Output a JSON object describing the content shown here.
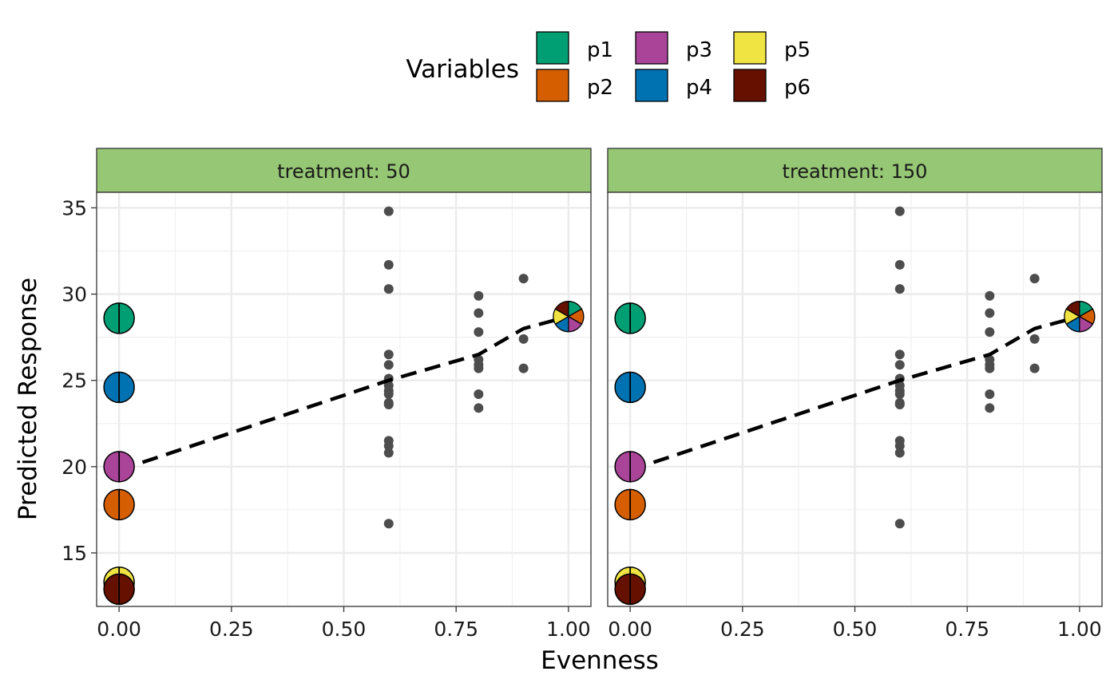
{
  "chart_data": {
    "type": "scatter",
    "xlabel": "Evenness",
    "ylabel": "Predicted Response",
    "xlim": [
      -0.05,
      1.05
    ],
    "ylim": [
      11.9,
      35.9
    ],
    "x_ticks": [
      0.0,
      0.25,
      0.5,
      0.75,
      1.0
    ],
    "x_tick_labels": [
      "0.00",
      "0.25",
      "0.50",
      "0.75",
      "1.00"
    ],
    "y_ticks": [
      15,
      20,
      25,
      30,
      35
    ],
    "y_tick_labels": [
      "15",
      "20",
      "25",
      "30",
      "35"
    ],
    "grid": true,
    "legend": {
      "title": "Variables",
      "position": "top",
      "entries": [
        {
          "name": "p1",
          "color": "#009E73"
        },
        {
          "name": "p2",
          "color": "#D55E00"
        },
        {
          "name": "p3",
          "color": "#AA4499"
        },
        {
          "name": "p4",
          "color": "#0072B2"
        },
        {
          "name": "p5",
          "color": "#F0E442"
        },
        {
          "name": "p6",
          "color": "#661100"
        }
      ]
    },
    "strip_color": "#96C774",
    "point_color": "#4d4d4d",
    "panels": [
      {
        "strip": "treatment: 50",
        "points": [
          [
            0.6,
            34.8
          ],
          [
            0.6,
            31.7
          ],
          [
            0.6,
            30.3
          ],
          [
            0.6,
            26.5
          ],
          [
            0.6,
            25.9
          ],
          [
            0.6,
            25.1
          ],
          [
            0.6,
            24.7
          ],
          [
            0.6,
            24.4
          ],
          [
            0.6,
            24.2
          ],
          [
            0.6,
            23.7
          ],
          [
            0.6,
            23.6
          ],
          [
            0.6,
            21.5
          ],
          [
            0.6,
            21.2
          ],
          [
            0.6,
            20.8
          ],
          [
            0.6,
            16.7
          ],
          [
            0.8,
            29.9
          ],
          [
            0.8,
            28.9
          ],
          [
            0.8,
            27.8
          ],
          [
            0.8,
            26.2
          ],
          [
            0.8,
            25.9
          ],
          [
            0.8,
            25.7
          ],
          [
            0.8,
            24.2
          ],
          [
            0.8,
            23.4
          ],
          [
            0.9,
            30.9
          ],
          [
            0.9,
            27.4
          ],
          [
            0.9,
            25.7
          ]
        ],
        "trend_line": [
          [
            0.0,
            19.8
          ],
          [
            0.6,
            25.0
          ],
          [
            0.8,
            26.5
          ],
          [
            0.9,
            28.0
          ],
          [
            1.0,
            28.7
          ]
        ],
        "monocultures": [
          {
            "variable": "p1",
            "x": 0.0,
            "y": 28.6
          },
          {
            "variable": "p4",
            "x": 0.0,
            "y": 24.6
          },
          {
            "variable": "p3",
            "x": 0.0,
            "y": 20.0
          },
          {
            "variable": "p2",
            "x": 0.0,
            "y": 17.8
          },
          {
            "variable": "p5",
            "x": 0.0,
            "y": 13.3
          },
          {
            "variable": "p6",
            "x": 0.0,
            "y": 12.9
          }
        ],
        "mixture": {
          "x": 1.0,
          "y": 28.7
        }
      },
      {
        "strip": "treatment: 150",
        "points": [
          [
            0.6,
            34.8
          ],
          [
            0.6,
            31.7
          ],
          [
            0.6,
            30.3
          ],
          [
            0.6,
            26.5
          ],
          [
            0.6,
            25.9
          ],
          [
            0.6,
            25.1
          ],
          [
            0.6,
            24.7
          ],
          [
            0.6,
            24.4
          ],
          [
            0.6,
            24.2
          ],
          [
            0.6,
            23.7
          ],
          [
            0.6,
            23.6
          ],
          [
            0.6,
            21.5
          ],
          [
            0.6,
            21.2
          ],
          [
            0.6,
            20.8
          ],
          [
            0.6,
            16.7
          ],
          [
            0.8,
            29.9
          ],
          [
            0.8,
            28.9
          ],
          [
            0.8,
            27.8
          ],
          [
            0.8,
            26.2
          ],
          [
            0.8,
            25.9
          ],
          [
            0.8,
            25.7
          ],
          [
            0.8,
            24.2
          ],
          [
            0.8,
            23.4
          ],
          [
            0.9,
            30.9
          ],
          [
            0.9,
            27.4
          ],
          [
            0.9,
            25.7
          ]
        ],
        "trend_line": [
          [
            0.0,
            19.8
          ],
          [
            0.6,
            25.0
          ],
          [
            0.8,
            26.5
          ],
          [
            0.9,
            28.0
          ],
          [
            1.0,
            28.7
          ]
        ],
        "monocultures": [
          {
            "variable": "p1",
            "x": 0.0,
            "y": 28.6
          },
          {
            "variable": "p4",
            "x": 0.0,
            "y": 24.6
          },
          {
            "variable": "p3",
            "x": 0.0,
            "y": 20.0
          },
          {
            "variable": "p2",
            "x": 0.0,
            "y": 17.8
          },
          {
            "variable": "p5",
            "x": 0.0,
            "y": 13.3
          },
          {
            "variable": "p6",
            "x": 0.0,
            "y": 12.9
          }
        ],
        "mixture": {
          "x": 1.0,
          "y": 28.7
        }
      }
    ]
  }
}
